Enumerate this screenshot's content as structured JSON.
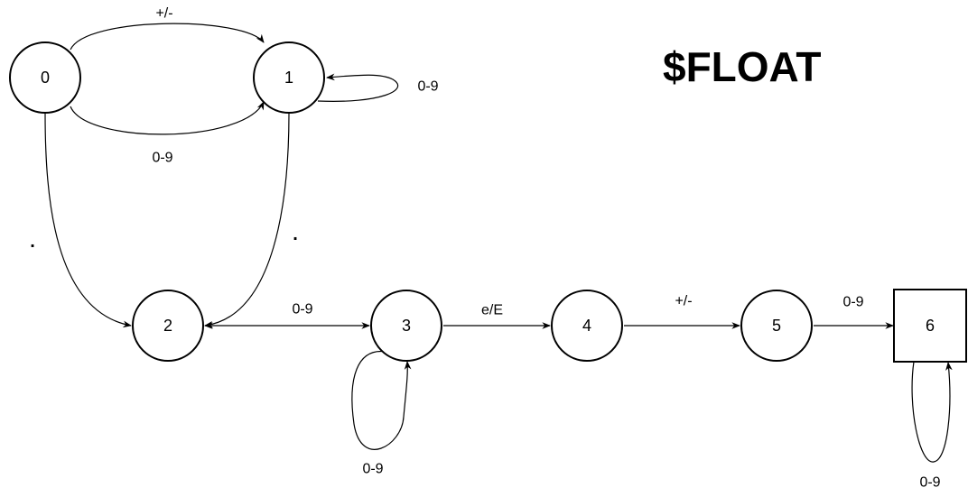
{
  "title": "$FLOAT",
  "nodes": [
    {
      "id": "0",
      "label": "0",
      "shape": "circle"
    },
    {
      "id": "1",
      "label": "1",
      "shape": "circle"
    },
    {
      "id": "2",
      "label": "2",
      "shape": "circle"
    },
    {
      "id": "3",
      "label": "3",
      "shape": "circle"
    },
    {
      "id": "4",
      "label": "4",
      "shape": "circle"
    },
    {
      "id": "5",
      "label": "5",
      "shape": "circle"
    },
    {
      "id": "6",
      "label": "6",
      "shape": "square"
    }
  ],
  "edges": [
    {
      "from": "0",
      "to": "1",
      "label": "+/-"
    },
    {
      "from": "0",
      "to": "1",
      "label": "0-9"
    },
    {
      "from": "1",
      "to": "1",
      "label": "0-9"
    },
    {
      "from": "0",
      "to": "2",
      "label": "."
    },
    {
      "from": "1",
      "to": "2",
      "label": "."
    },
    {
      "from": "2",
      "to": "3",
      "label": "0-9"
    },
    {
      "from": "3",
      "to": "3",
      "label": "0-9"
    },
    {
      "from": "3",
      "to": "4",
      "label": "e/E"
    },
    {
      "from": "4",
      "to": "5",
      "label": "+/-"
    },
    {
      "from": "5",
      "to": "6",
      "label": "0-9"
    },
    {
      "from": "6",
      "to": "6",
      "label": "0-9"
    }
  ],
  "colors": {
    "stroke": "#000000",
    "background": "#ffffff"
  }
}
